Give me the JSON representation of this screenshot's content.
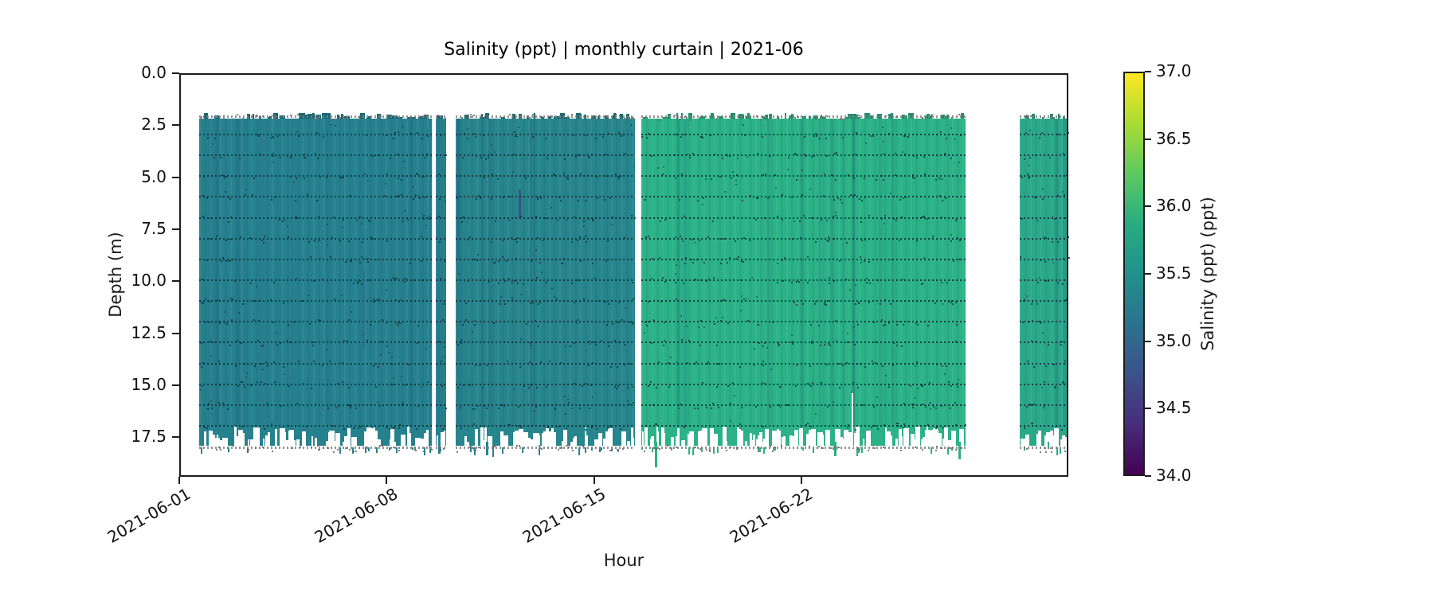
{
  "chart_data": {
    "type": "heatmap",
    "title": "Salinity (ppt) | monthly curtain | 2021-06",
    "xlabel": "Hour",
    "ylabel": "Depth (m)",
    "x_tick_labels": [
      "2021-06-01",
      "2021-06-08",
      "2021-06-15",
      "2021-06-22"
    ],
    "x_tick_days": [
      0,
      7,
      14,
      21
    ],
    "x_range_days": [
      0,
      30
    ],
    "y_tick_values": [
      0,
      2.5,
      5,
      7.5,
      10,
      12.5,
      15,
      17.5
    ],
    "y_tick_labels": [
      "0.0",
      "2.5",
      "5.0",
      "7.5",
      "10.0",
      "12.5",
      "15.0",
      "17.5"
    ],
    "ylim": [
      0,
      19.4
    ],
    "y_axis_inverted_depth": true,
    "grid": false,
    "surface_depth_m": 2.1,
    "bed_depth_m": 17.9,
    "sensor_line_depths": [
      2.95,
      3.95,
      4.95,
      5.95,
      6.95,
      7.95,
      8.95,
      9.95,
      10.95,
      11.95,
      12.95,
      13.95,
      14.95,
      15.95,
      16.95
    ],
    "segments": [
      {
        "start_day": 0.67,
        "end_day": 8.52,
        "salinity_ppt": 35.4,
        "color": "#26818e"
      },
      {
        "start_day": 8.66,
        "end_day": 9.0,
        "salinity_ppt": 35.4,
        "color": "#26818e"
      },
      {
        "start_day": 9.33,
        "end_day": 15.38,
        "salinity_ppt": 35.45,
        "color": "#27858d"
      },
      {
        "start_day": 15.59,
        "end_day": 26.53,
        "salinity_ppt": 35.9,
        "color": "#2bb286"
      },
      {
        "start_day": 28.36,
        "end_day": 30.0,
        "salinity_ppt": 35.8,
        "color": "#2aa98a"
      }
    ],
    "deep_spikes": [
      {
        "day": 8.74,
        "depth_m": 18.3
      },
      {
        "day": 10.35,
        "depth_m": 18.35
      },
      {
        "day": 10.56,
        "depth_m": 18.45
      },
      {
        "day": 16.05,
        "depth_m": 18.95
      },
      {
        "day": 22.1,
        "depth_m": 18.4
      },
      {
        "day": 26.3,
        "depth_m": 18.55
      },
      {
        "day": 29.3,
        "depth_m": 18.05
      }
    ],
    "dark_streaks": [
      {
        "day": 11.48,
        "top_m": 5.6,
        "bottom_m": 7.0,
        "color": "#3b2f72"
      },
      {
        "day": 9.42,
        "top_m": 2.2,
        "bottom_m": 9.0,
        "color": "#2c5f8a"
      },
      {
        "day": 6.2,
        "top_m": 9.5,
        "bottom_m": 13.2,
        "color": "#2a6a8c"
      }
    ],
    "white_streaks": [
      {
        "day": 22.72,
        "top_m": 15.4,
        "bottom_m": 18.0
      }
    ],
    "colorbar": {
      "label": "Salinity (ppt) (ppt)",
      "tick_labels": [
        "37.0",
        "36.5",
        "36.0",
        "35.5",
        "35.0",
        "34.5",
        "34.0"
      ],
      "tick_values": [
        37.0,
        36.5,
        36.0,
        35.5,
        35.0,
        34.5,
        34.0
      ],
      "range": [
        34.0,
        37.0
      ],
      "colormap": "viridis",
      "stops": [
        "#440154",
        "#472d7b",
        "#3b528b",
        "#2c728e",
        "#21918c",
        "#27ad81",
        "#5ec962",
        "#aadc32",
        "#fde725"
      ]
    }
  }
}
